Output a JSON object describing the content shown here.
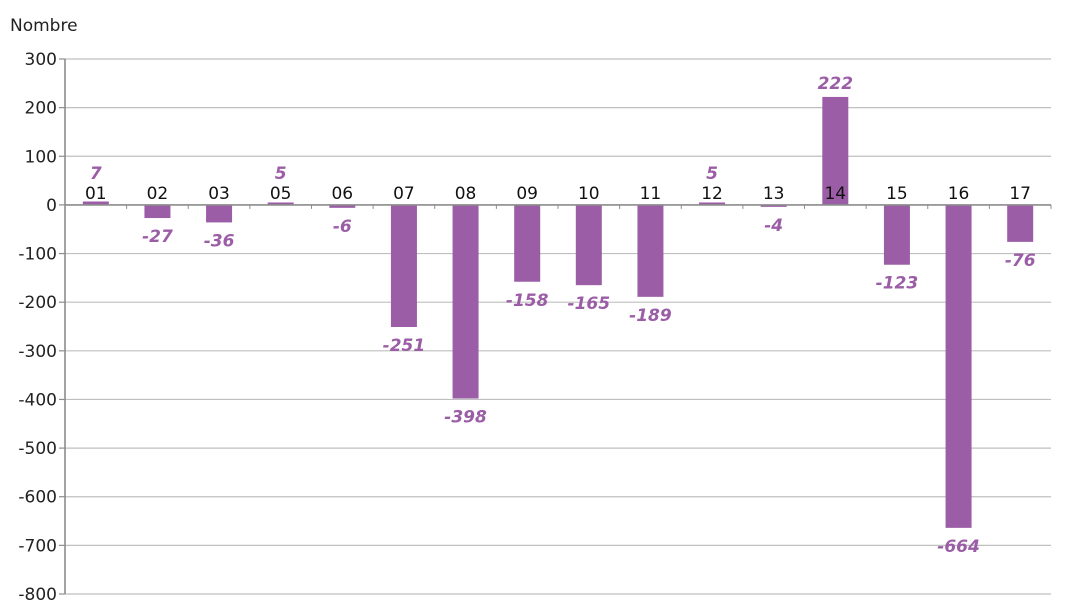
{
  "chart_data": {
    "type": "bar",
    "ylabel": "Nombre",
    "categories": [
      "01",
      "02",
      "03",
      "05",
      "06",
      "07",
      "08",
      "09",
      "10",
      "11",
      "12",
      "13",
      "14",
      "15",
      "16",
      "17"
    ],
    "values": [
      7,
      -27,
      -36,
      5,
      -6,
      -251,
      -398,
      -158,
      -165,
      -189,
      5,
      -4,
      222,
      -123,
      -664,
      -76
    ],
    "value_labels": [
      "7",
      "-27",
      "-36",
      "5",
      "-6",
      "-251",
      "-398",
      "-158",
      "-165",
      "-189",
      "5",
      "-4",
      "222",
      "-123",
      "-664",
      "-76"
    ],
    "ylim": [
      -800,
      300
    ],
    "yticks": [
      300,
      200,
      100,
      0,
      -100,
      -200,
      -300,
      -400,
      -500,
      -600,
      -700,
      -800
    ],
    "ytick_labels": [
      "300",
      "200",
      "100",
      "0",
      "-100",
      "-200",
      "-300",
      "-400",
      "-500",
      "-600",
      "-700",
      "-800"
    ],
    "grid": true,
    "colors": {
      "bar": "#9b5da6",
      "label": "#9b5da6",
      "grid": "#bfbfbf",
      "axis": "#8c8c8c"
    }
  }
}
